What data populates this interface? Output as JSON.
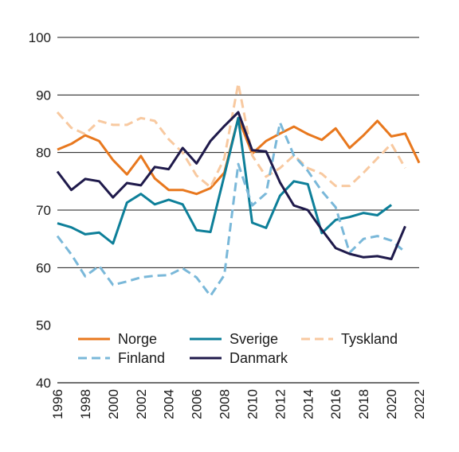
{
  "chart_data": {
    "type": "line",
    "title": "",
    "xlabel": "",
    "ylabel": "",
    "xlim": [
      1996,
      2022
    ],
    "ylim": [
      40,
      100
    ],
    "x_ticks": [
      1996,
      1998,
      2000,
      2002,
      2004,
      2006,
      2008,
      2010,
      2012,
      2014,
      2016,
      2018,
      2020,
      2022
    ],
    "y_ticks": [
      40,
      50,
      60,
      70,
      80,
      90,
      100
    ],
    "grid": "horizontal",
    "legend_position": "bottom-inside",
    "x": [
      1996,
      1997,
      1998,
      1999,
      2000,
      2001,
      2002,
      2003,
      2004,
      2005,
      2006,
      2007,
      2008,
      2009,
      2010,
      2011,
      2012,
      2013,
      2014,
      2015,
      2016,
      2017,
      2018,
      2019,
      2020,
      2021,
      2022
    ],
    "series": [
      {
        "name": "Norge",
        "color": "#e8781e",
        "dash": "solid",
        "values": [
          80.5,
          81.5,
          83,
          82,
          78.7,
          76.2,
          79.4,
          75.5,
          73.5,
          73.5,
          72.8,
          73.8,
          76.5,
          86,
          79.8,
          82,
          83.3,
          84.5,
          83.2,
          82.2,
          84.2,
          80.8,
          83,
          85.5,
          82.8,
          83.3,
          78.2
        ]
      },
      {
        "name": "Sverige",
        "color": "#0d7f99",
        "dash": "solid",
        "values": [
          67.7,
          67,
          65.8,
          66.1,
          64.2,
          71.3,
          72.8,
          71,
          71.8,
          71,
          66.5,
          66.2,
          76,
          86,
          67.8,
          66.9,
          72.5,
          75,
          74.5,
          66,
          68.3,
          68.8,
          69.5,
          69.1,
          70.9,
          null,
          null
        ]
      },
      {
        "name": "Tyskland",
        "color": "#f8c9a0",
        "dash": "dashed",
        "values": [
          87,
          84.3,
          83.2,
          85.5,
          84.8,
          84.8,
          86,
          85.5,
          82.3,
          80,
          76,
          74,
          79,
          92,
          79.5,
          75.8,
          77.3,
          79.5,
          77.3,
          76.3,
          74.2,
          74.2,
          76.5,
          79,
          81.5,
          77.3,
          null
        ]
      },
      {
        "name": "Finland",
        "color": "#7ab8d9",
        "dash": "dashed",
        "values": [
          65.5,
          62.3,
          58.5,
          60.3,
          57,
          57.6,
          58.3,
          58.6,
          58.7,
          59.9,
          58.3,
          55.1,
          58.7,
          78,
          70.8,
          72.9,
          85.2,
          79.5,
          76.8,
          73.3,
          70.5,
          62.6,
          65,
          65.5,
          64.7,
          62.7,
          null
        ]
      },
      {
        "name": "Danmark",
        "color": "#1f1a4b",
        "dash": "solid",
        "values": [
          76.7,
          73.5,
          75.4,
          75,
          72.2,
          74.7,
          74.3,
          77.5,
          77.1,
          80.8,
          78.1,
          82,
          84.6,
          87,
          80.4,
          80.2,
          74.8,
          70.8,
          70,
          66.6,
          63.4,
          62.4,
          61.8,
          62,
          61.5,
          67.2,
          null
        ]
      }
    ]
  }
}
